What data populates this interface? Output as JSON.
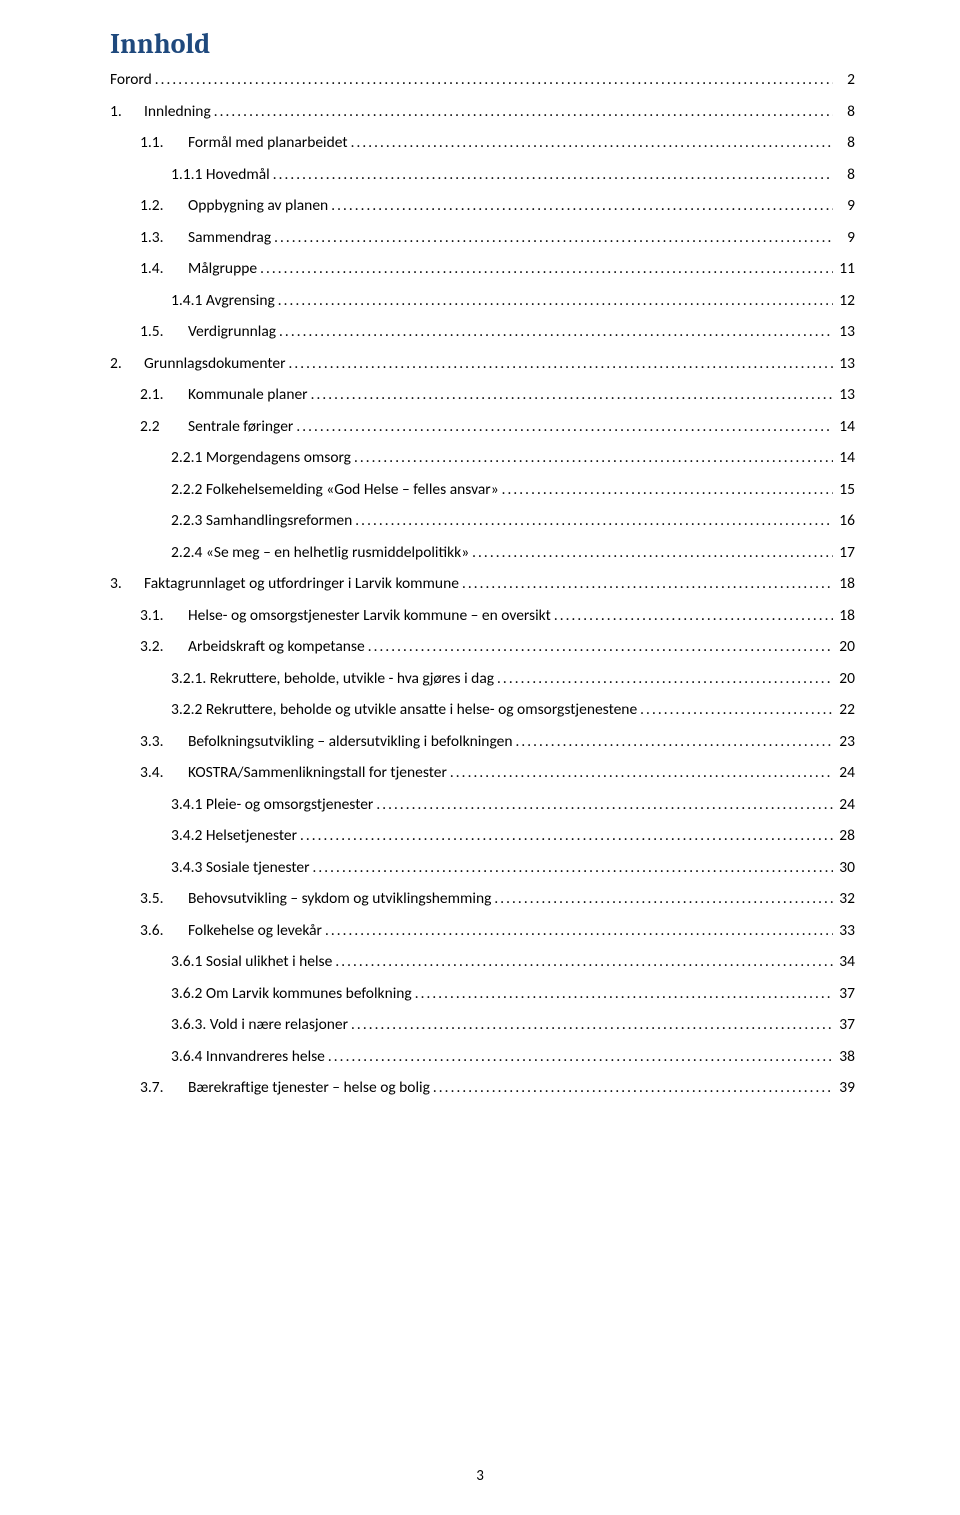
{
  "title_text": "Innhold",
  "title_color": "#1f497d",
  "page_number": "3",
  "num_widths": {
    "lvl0": 0,
    "lvl1": 48,
    "lvl2": 48
  },
  "toc": [
    {
      "lvl": 0,
      "num": "",
      "text": "Forord",
      "page": "2"
    },
    {
      "lvl": 0,
      "num": "1.",
      "text": "Innledning",
      "page": "8"
    },
    {
      "lvl": 1,
      "num": "1.1.",
      "text": "Formål med planarbeidet",
      "page": "8"
    },
    {
      "lvl": 2,
      "num": "",
      "text": "1.1.1 Hovedmål",
      "page": "8"
    },
    {
      "lvl": 1,
      "num": "1.2.",
      "text": "Oppbygning av planen",
      "page": "9"
    },
    {
      "lvl": 1,
      "num": "1.3.",
      "text": "Sammendrag",
      "page": "9"
    },
    {
      "lvl": 1,
      "num": "1.4.",
      "text": "Målgruppe",
      "page": "11"
    },
    {
      "lvl": 2,
      "num": "",
      "text": "1.4.1 Avgrensing",
      "page": "12"
    },
    {
      "lvl": 1,
      "num": "1.5.",
      "text": "Verdigrunnlag",
      "page": "13"
    },
    {
      "lvl": 0,
      "num": "2.",
      "text": "Grunnlagsdokumenter",
      "page": "13"
    },
    {
      "lvl": 1,
      "num": "2.1.",
      "text": "Kommunale planer",
      "page": "13"
    },
    {
      "lvl": 1,
      "num": "2.2",
      "text": "Sentrale føringer",
      "page": "14"
    },
    {
      "lvl": 2,
      "num": "",
      "text": "2.2.1 Morgendagens omsorg",
      "page": "14"
    },
    {
      "lvl": 2,
      "num": "",
      "text": "2.2.2 Folkehelsemelding «God Helse – felles ansvar»",
      "page": "15"
    },
    {
      "lvl": 2,
      "num": "",
      "text": "2.2.3 Samhandlingsreformen",
      "page": "16"
    },
    {
      "lvl": 2,
      "num": "",
      "text": "2.2.4 «Se meg – en helhetlig rusmiddelpolitikk»",
      "page": "17"
    },
    {
      "lvl": 0,
      "num": "3.",
      "text": "Faktagrunnlaget og utfordringer i Larvik kommune",
      "page": "18"
    },
    {
      "lvl": 1,
      "num": "3.1.",
      "text": "Helse- og omsorgstjenester Larvik kommune – en oversikt",
      "page": "18"
    },
    {
      "lvl": 1,
      "num": "3.2.",
      "text": "Arbeidskraft og kompetanse",
      "page": "20"
    },
    {
      "lvl": 2,
      "num": "",
      "text": "3.2.1. Rekruttere, beholde, utvikle - hva gjøres i dag",
      "page": "20"
    },
    {
      "lvl": 2,
      "num": "",
      "text": "3.2.2 Rekruttere, beholde og utvikle ansatte i helse- og omsorgstjenestene",
      "page": "22"
    },
    {
      "lvl": 1,
      "num": "3.3.",
      "text": "Befolkningsutvikling – aldersutvikling i befolkningen",
      "page": "23"
    },
    {
      "lvl": 1,
      "num": "3.4.",
      "text": "KOSTRA/Sammenlikningstall for tjenester",
      "page": "24"
    },
    {
      "lvl": 2,
      "num": "",
      "text": "3.4.1 Pleie- og omsorgstjenester",
      "page": "24"
    },
    {
      "lvl": 2,
      "num": "",
      "text": "3.4.2 Helsetjenester",
      "page": "28"
    },
    {
      "lvl": 2,
      "num": "",
      "text": "3.4.3 Sosiale tjenester",
      "page": "30"
    },
    {
      "lvl": 1,
      "num": "3.5.",
      "text": "Behovsutvikling – sykdom og utviklingshemming",
      "page": "32"
    },
    {
      "lvl": 1,
      "num": "3.6.",
      "text": "Folkehelse og levekår",
      "page": "33"
    },
    {
      "lvl": 2,
      "num": "",
      "text": "3.6.1 Sosial ulikhet i helse",
      "page": "34"
    },
    {
      "lvl": 2,
      "num": "",
      "text": "3.6.2 Om Larvik kommunes befolkning",
      "page": "37"
    },
    {
      "lvl": 2,
      "num": "",
      "text": "3.6.3. Vold i nære relasjoner",
      "page": "37"
    },
    {
      "lvl": 2,
      "num": "",
      "text": "3.6.4 Innvandreres helse",
      "page": "38"
    },
    {
      "lvl": 1,
      "num": "3.7.",
      "text": "Bærekraftige tjenester – helse og bolig",
      "page": "39"
    }
  ]
}
